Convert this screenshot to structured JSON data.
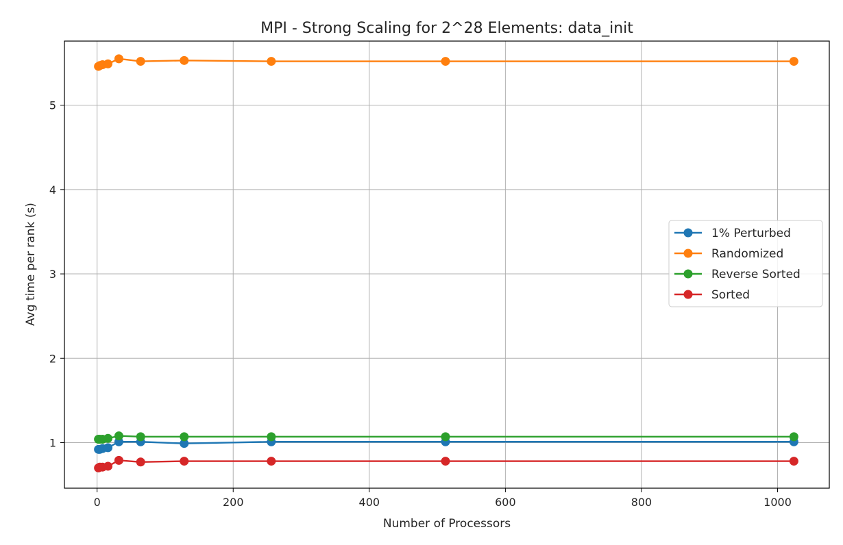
{
  "chart_data": {
    "type": "line",
    "title": "MPI - Strong Scaling for 2^28 Elements: data_init",
    "xlabel": "Number of Processors",
    "ylabel": "Avg time per rank (s)",
    "xlim": [
      -48,
      1076
    ],
    "ylim": [
      0.46,
      5.76
    ],
    "xticks": [
      0,
      200,
      400,
      600,
      800,
      1000
    ],
    "yticks": [
      1,
      2,
      3,
      4,
      5
    ],
    "grid": true,
    "legend_position": "center-right",
    "x": [
      2,
      4,
      8,
      16,
      32,
      64,
      128,
      256,
      512,
      1024
    ],
    "series": [
      {
        "name": "1% Perturbed",
        "color": "#1f77b4",
        "values": [
          0.92,
          0.92,
          0.93,
          0.94,
          1.01,
          1.01,
          0.99,
          1.01,
          1.01,
          1.01
        ]
      },
      {
        "name": "Randomized",
        "color": "#ff7f0e",
        "values": [
          5.46,
          5.47,
          5.48,
          5.49,
          5.55,
          5.52,
          5.53,
          5.52,
          5.52,
          5.52
        ]
      },
      {
        "name": "Reverse Sorted",
        "color": "#2ca02c",
        "values": [
          1.04,
          1.04,
          1.04,
          1.05,
          1.08,
          1.07,
          1.07,
          1.07,
          1.07,
          1.07
        ]
      },
      {
        "name": "Sorted",
        "color": "#d62728",
        "values": [
          0.7,
          0.71,
          0.71,
          0.72,
          0.79,
          0.77,
          0.78,
          0.78,
          0.78,
          0.78
        ]
      }
    ]
  }
}
